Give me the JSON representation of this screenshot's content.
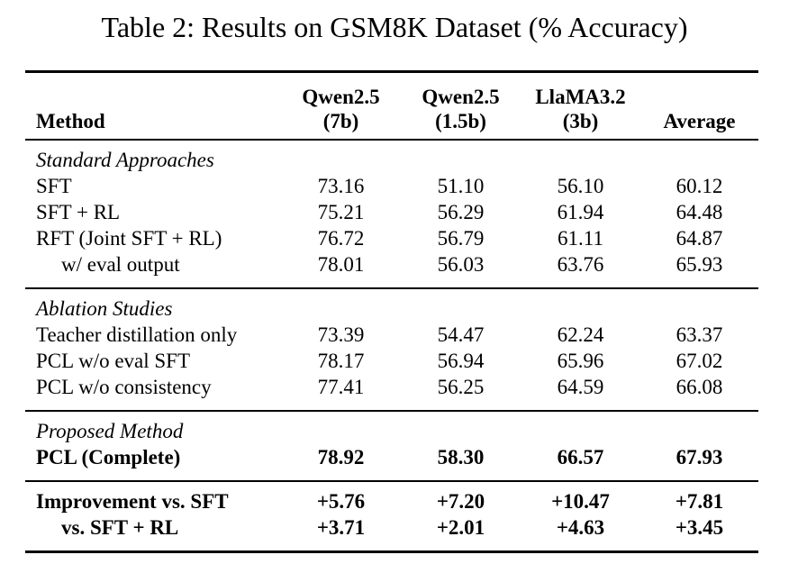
{
  "title": "Table 2: Results on GSM8K Dataset (% Accuracy)",
  "table": {
    "columns": [
      {
        "label": "Method",
        "sublabel": ""
      },
      {
        "label": "Qwen2.5",
        "sublabel": "(7b)"
      },
      {
        "label": "Qwen2.5",
        "sublabel": "(1.5b)"
      },
      {
        "label": "LlaMA3.2",
        "sublabel": "(3b)"
      },
      {
        "label": "Average",
        "sublabel": ""
      }
    ],
    "sections": [
      {
        "header": "Standard Approaches",
        "rows": [
          {
            "method": "SFT",
            "indent": false,
            "bold": false,
            "values": [
              "73.16",
              "51.10",
              "56.10",
              "60.12"
            ]
          },
          {
            "method": "SFT + RL",
            "indent": false,
            "bold": false,
            "values": [
              "75.21",
              "56.29",
              "61.94",
              "64.48"
            ]
          },
          {
            "method": "RFT (Joint SFT + RL)",
            "indent": false,
            "bold": false,
            "values": [
              "76.72",
              "56.79",
              "61.11",
              "64.87"
            ]
          },
          {
            "method": "w/ eval output",
            "indent": true,
            "bold": false,
            "values": [
              "78.01",
              "56.03",
              "63.76",
              "65.93"
            ]
          }
        ]
      },
      {
        "header": "Ablation Studies",
        "rows": [
          {
            "method": "Teacher distillation only",
            "indent": false,
            "bold": false,
            "values": [
              "73.39",
              "54.47",
              "62.24",
              "63.37"
            ]
          },
          {
            "method": "PCL w/o eval SFT",
            "indent": false,
            "bold": false,
            "values": [
              "78.17",
              "56.94",
              "65.96",
              "67.02"
            ]
          },
          {
            "method": "PCL w/o consistency",
            "indent": false,
            "bold": false,
            "values": [
              "77.41",
              "56.25",
              "64.59",
              "66.08"
            ]
          }
        ]
      },
      {
        "header": "Proposed Method",
        "rows": [
          {
            "method": "PCL (Complete)",
            "indent": false,
            "bold": true,
            "values": [
              "78.92",
              "58.30",
              "66.57",
              "67.93"
            ]
          }
        ]
      },
      {
        "header": "",
        "rows": [
          {
            "method": "Improvement vs. SFT",
            "indent": false,
            "bold": true,
            "values": [
              "+5.76",
              "+7.20",
              "+10.47",
              "+7.81"
            ]
          },
          {
            "method": "vs. SFT + RL",
            "indent": true,
            "bold": true,
            "values": [
              "+3.71",
              "+2.01",
              "+4.63",
              "+3.45"
            ]
          }
        ]
      }
    ]
  }
}
